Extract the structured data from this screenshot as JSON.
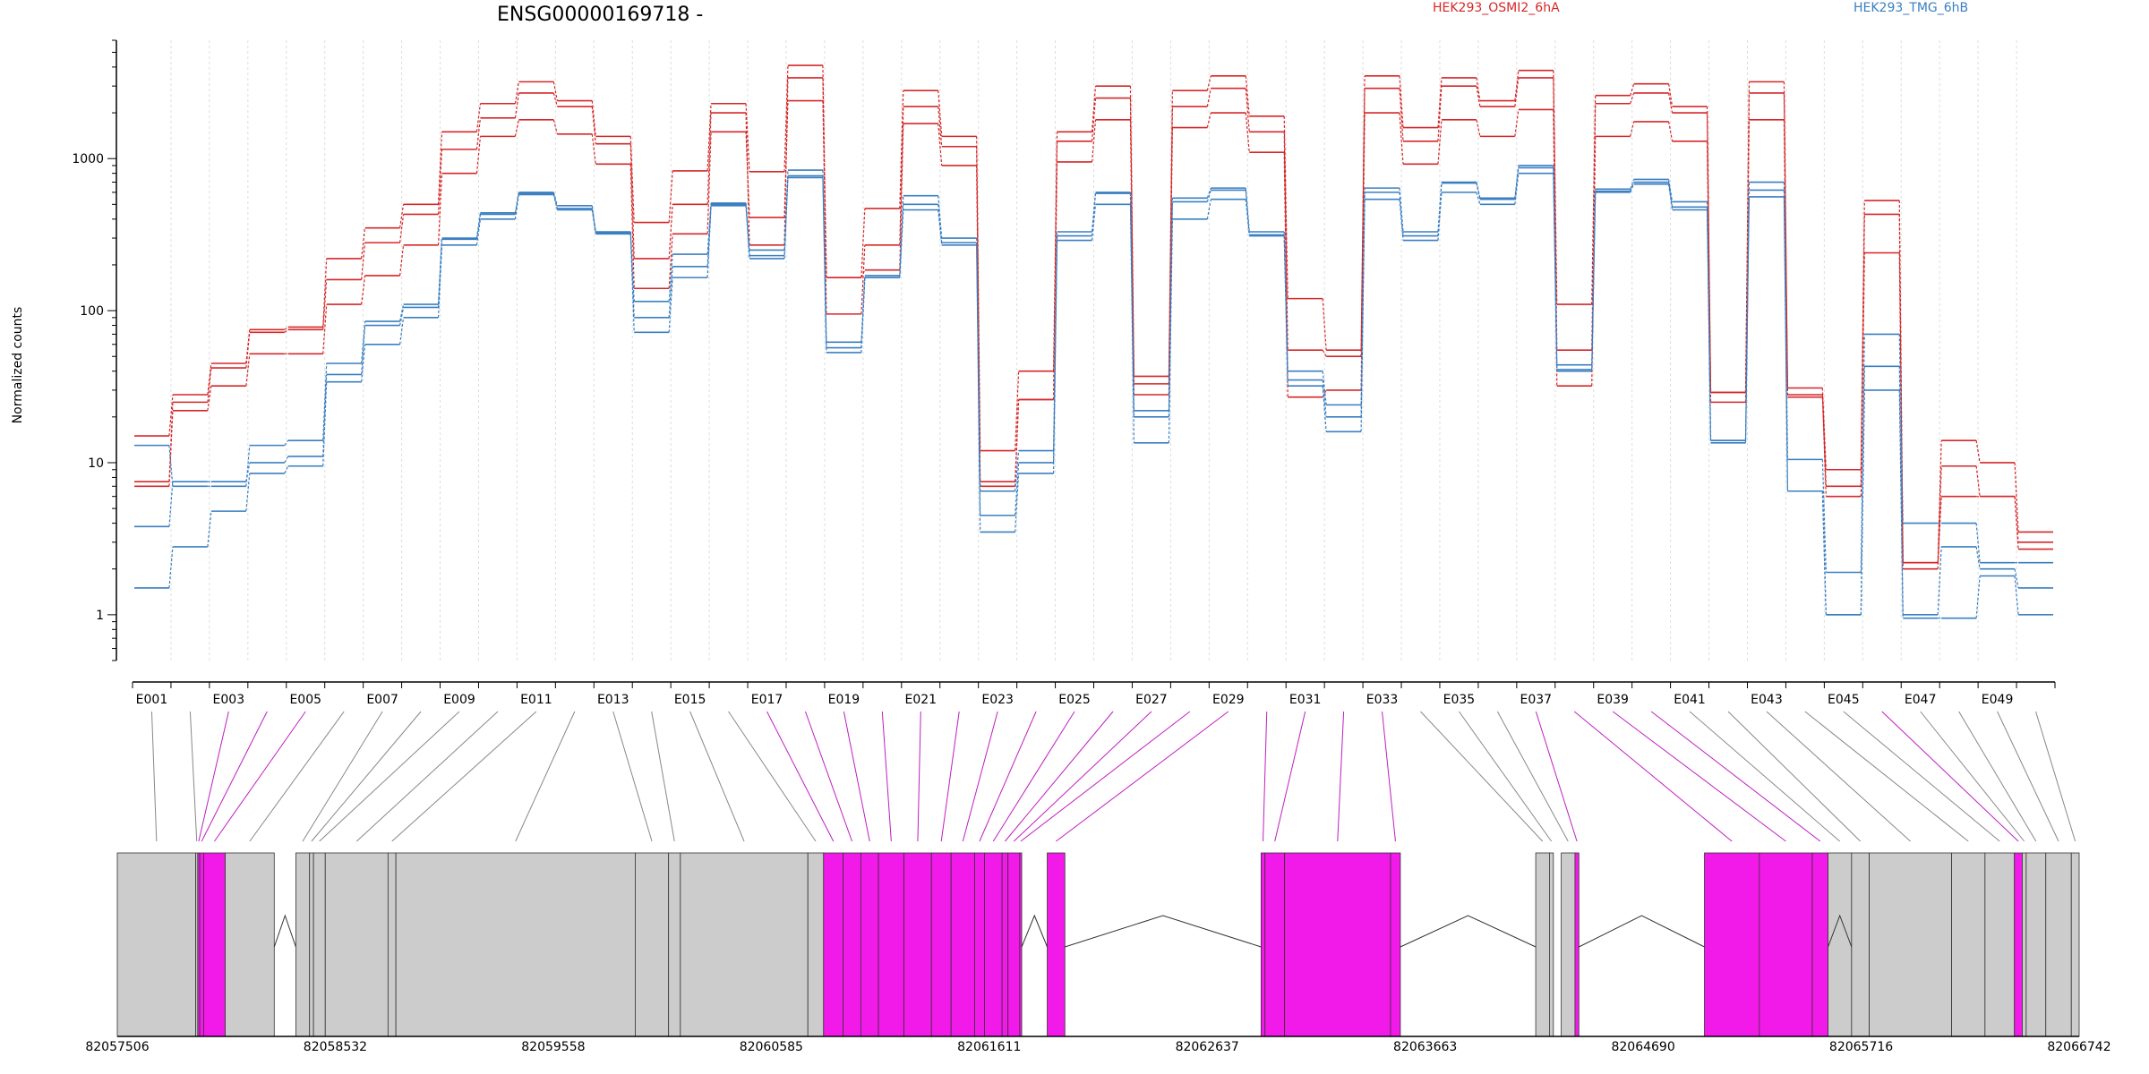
{
  "chart_data": {
    "type": "line",
    "title": "ENSG00000169718 -",
    "xlabel": "",
    "ylabel": "Normalized counts",
    "y_scale": "log",
    "ylim": [
      0.5,
      6000
    ],
    "yticks": [
      1,
      10,
      100,
      1000
    ],
    "ytick_labels": [
      "1",
      "10",
      "100",
      "1000"
    ],
    "grid": "vertical dashed lines at exon boundaries",
    "exon_labels": [
      "E001",
      "E002",
      "E003",
      "E004",
      "E005",
      "E006",
      "E007",
      "E008",
      "E009",
      "E010",
      "E011",
      "E012",
      "E013",
      "E014",
      "E015",
      "E016",
      "E017",
      "E018",
      "E019",
      "E020",
      "E021",
      "E022",
      "E023",
      "E024",
      "E025",
      "E026",
      "E027",
      "E028",
      "E029",
      "E030",
      "E031",
      "E032",
      "E033",
      "E034",
      "E035",
      "E036",
      "E037",
      "E038",
      "E039",
      "E040",
      "E041",
      "E042",
      "E043",
      "E044",
      "E045",
      "E046",
      "E047",
      "E048",
      "E049",
      "E050"
    ],
    "exon_tick_labels": [
      "E001",
      "E003",
      "E005",
      "E007",
      "E009",
      "E011",
      "E013",
      "E015",
      "E017",
      "E019",
      "E021",
      "E023",
      "E025",
      "E027",
      "E029",
      "E031",
      "E033",
      "E035",
      "E037",
      "E039",
      "E041",
      "E043",
      "E045",
      "E047",
      "E049"
    ],
    "legend": [
      {
        "label": "HEK293_OSMI2_6hA",
        "color": "#d62728"
      },
      {
        "label": "HEK293_TMG_6hB",
        "color": "#3a7fc1"
      }
    ],
    "series": [
      {
        "group": "HEK293_OSMI2_6hA",
        "color": "#d62728",
        "values": [
          15,
          28,
          45,
          75,
          78,
          220,
          350,
          500,
          1500,
          2300,
          3200,
          2400,
          1400,
          380,
          830,
          2300,
          820,
          4100,
          165,
          470,
          2800,
          1400,
          12,
          40,
          1500,
          3000,
          37,
          2800,
          3500,
          1900,
          120,
          55,
          3500,
          1600,
          3400,
          2400,
          3800,
          110,
          2600,
          3100,
          2200,
          29,
          3200,
          31,
          9,
          530,
          2.2,
          14,
          10,
          3.5
        ]
      },
      {
        "group": "HEK293_OSMI2_6hA",
        "color": "#d62728",
        "values": [
          7.5,
          25,
          42,
          72,
          75,
          160,
          280,
          430,
          1150,
          1850,
          2700,
          2200,
          1250,
          220,
          500,
          2000,
          270,
          3400,
          95,
          270,
          2200,
          1200,
          7.5,
          26,
          1300,
          2500,
          33,
          2200,
          2900,
          1500,
          55,
          50,
          2900,
          1300,
          3000,
          2200,
          3400,
          55,
          2300,
          2700,
          2000,
          25,
          2700,
          28,
          7,
          430,
          2,
          9.5,
          6,
          2.7
        ]
      },
      {
        "group": "HEK293_OSMI2_6hA",
        "color": "#d62728",
        "values": [
          7,
          22,
          32,
          52,
          52,
          110,
          170,
          270,
          800,
          1400,
          1800,
          1450,
          920,
          140,
          320,
          1500,
          410,
          2400,
          165,
          185,
          1700,
          900,
          7,
          26,
          950,
          1800,
          28,
          1600,
          2000,
          1100,
          27,
          30,
          2000,
          920,
          1800,
          1400,
          2100,
          32,
          1400,
          1750,
          1300,
          29,
          1800,
          27,
          6,
          240,
          2.2,
          6,
          6,
          3
        ]
      },
      {
        "group": "HEK293_TMG_6hB",
        "color": "#3a7fc1",
        "values": [
          13,
          7,
          7,
          13,
          14,
          45,
          85,
          110,
          300,
          440,
          600,
          490,
          330,
          115,
          235,
          510,
          250,
          840,
          62,
          170,
          570,
          300,
          6.5,
          12,
          330,
          600,
          22,
          550,
          640,
          330,
          40,
          24,
          640,
          330,
          700,
          550,
          900,
          44,
          630,
          730,
          520,
          14,
          700,
          10.5,
          1.9,
          70,
          4,
          4,
          2.2,
          2.2
        ]
      },
      {
        "group": "HEK293_TMG_6hB",
        "color": "#3a7fc1",
        "values": [
          3.8,
          7.5,
          7.5,
          10,
          11,
          38,
          80,
          105,
          295,
          430,
          590,
          470,
          325,
          90,
          195,
          500,
          230,
          770,
          57,
          165,
          500,
          280,
          4.5,
          10,
          310,
          590,
          20,
          520,
          620,
          315,
          35,
          20,
          600,
          310,
          690,
          540,
          870,
          40,
          610,
          700,
          480,
          14,
          620,
          6.5,
          1,
          43,
          1,
          2.8,
          2,
          1.5
        ]
      },
      {
        "group": "HEK293_TMG_6hB",
        "color": "#3a7fc1",
        "values": [
          1.5,
          2.8,
          4.8,
          8.5,
          9.5,
          34,
          60,
          90,
          270,
          400,
          580,
          460,
          320,
          72,
          165,
          490,
          220,
          750,
          53,
          165,
          460,
          270,
          3.5,
          8.5,
          290,
          500,
          13.5,
          400,
          540,
          310,
          32,
          16,
          540,
          290,
          600,
          500,
          800,
          41,
          600,
          680,
          460,
          13.5,
          560,
          6.5,
          1,
          30,
          0.95,
          0.95,
          1.8,
          1
        ]
      }
    ],
    "gene_model": {
      "start_label": "82057506",
      "coordinate_labels": [
        "82057506",
        "82058532",
        "82059558",
        "82060585",
        "82061611",
        "82062637",
        "82063663",
        "82064690",
        "82065716",
        "82066742"
      ],
      "exon_colors": {
        "normal": "#cccccc",
        "highlighted": "#f21ae8"
      },
      "highlighted_exons": [
        "E003",
        "E004",
        "E005",
        "E017",
        "E018",
        "E019",
        "E020",
        "E021",
        "E022",
        "E023",
        "E024",
        "E025",
        "E026",
        "E027",
        "E028",
        "E029",
        "E030",
        "E031",
        "E032",
        "E033",
        "E037",
        "E038",
        "E039",
        "E040",
        "E046"
      ]
    }
  }
}
